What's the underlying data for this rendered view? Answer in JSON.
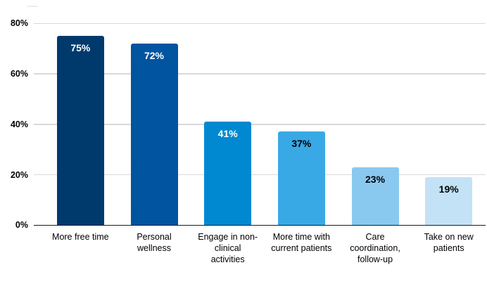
{
  "chart_data": {
    "type": "bar",
    "title": "",
    "xlabel": "",
    "ylabel": "",
    "categories": [
      "More free time",
      "Personal wellness",
      "Engage in non-clinical activities",
      "More time with current patients",
      "Care coordination, follow-up",
      "Take on new patients"
    ],
    "values": [
      75,
      72,
      41,
      37,
      23,
      19
    ],
    "value_labels": [
      "75%",
      "72%",
      "41%",
      "37%",
      "23%",
      "19%"
    ],
    "bar_colors": [
      "#003a6d",
      "#0054a0",
      "#0089d0",
      "#39a9e5",
      "#8ac9ef",
      "#c3e2f6"
    ],
    "value_label_colors": [
      "#ffffff",
      "#ffffff",
      "#ffffff",
      "#000000",
      "#000000",
      "#000000"
    ],
    "ylim": [
      0,
      80
    ],
    "yticks": [
      {
        "value": 0,
        "label": "0%"
      },
      {
        "value": 20,
        "label": "20%"
      },
      {
        "value": 40,
        "label": "40%"
      },
      {
        "value": 60,
        "label": "60%"
      },
      {
        "value": 80,
        "label": "80%"
      }
    ],
    "grid": "horizontal",
    "legend": "none",
    "background": "#ffffff",
    "gridline_color": "#d9d9d9",
    "axis_line_color": "#1a1a1a"
  }
}
